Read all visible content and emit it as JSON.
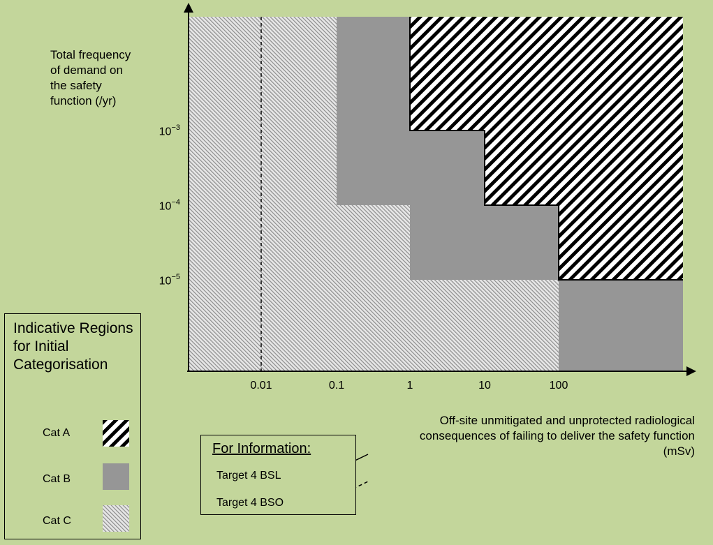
{
  "y_axis": {
    "label": "Total frequency of demand on the safety function (/yr)",
    "ticks": [
      {
        "base": "10",
        "exp": "−3"
      },
      {
        "base": "10",
        "exp": "−4"
      },
      {
        "base": "10",
        "exp": "−5"
      }
    ]
  },
  "x_axis": {
    "label": "Off-site unmitigated and unprotected radiological consequences of failing to deliver the safety function (mSv)",
    "ticks": [
      "0.01",
      "0.1",
      "1",
      "10",
      "100"
    ]
  },
  "legend": {
    "title": "Indicative Regions for Initial Categorisation",
    "items": [
      {
        "label": "Cat A",
        "pattern": "heavy-diagonal-hatch"
      },
      {
        "label": "Cat B",
        "color": "#969696"
      },
      {
        "label": "Cat C",
        "pattern": "fine-diagonal-hatch"
      }
    ]
  },
  "info": {
    "title": "For Information:",
    "items": [
      {
        "label": "Target 4 BSL",
        "line_style": "solid"
      },
      {
        "label": "Target 4 BSO",
        "line_style": "dashed"
      }
    ]
  },
  "colors": {
    "background": "#c3d69b",
    "cat_b_fill": "#969696",
    "cat_c_fill": "#e6e6e6",
    "cat_c_hatch": "#8c8c8c",
    "cat_a_fill": "#ffffff"
  }
}
